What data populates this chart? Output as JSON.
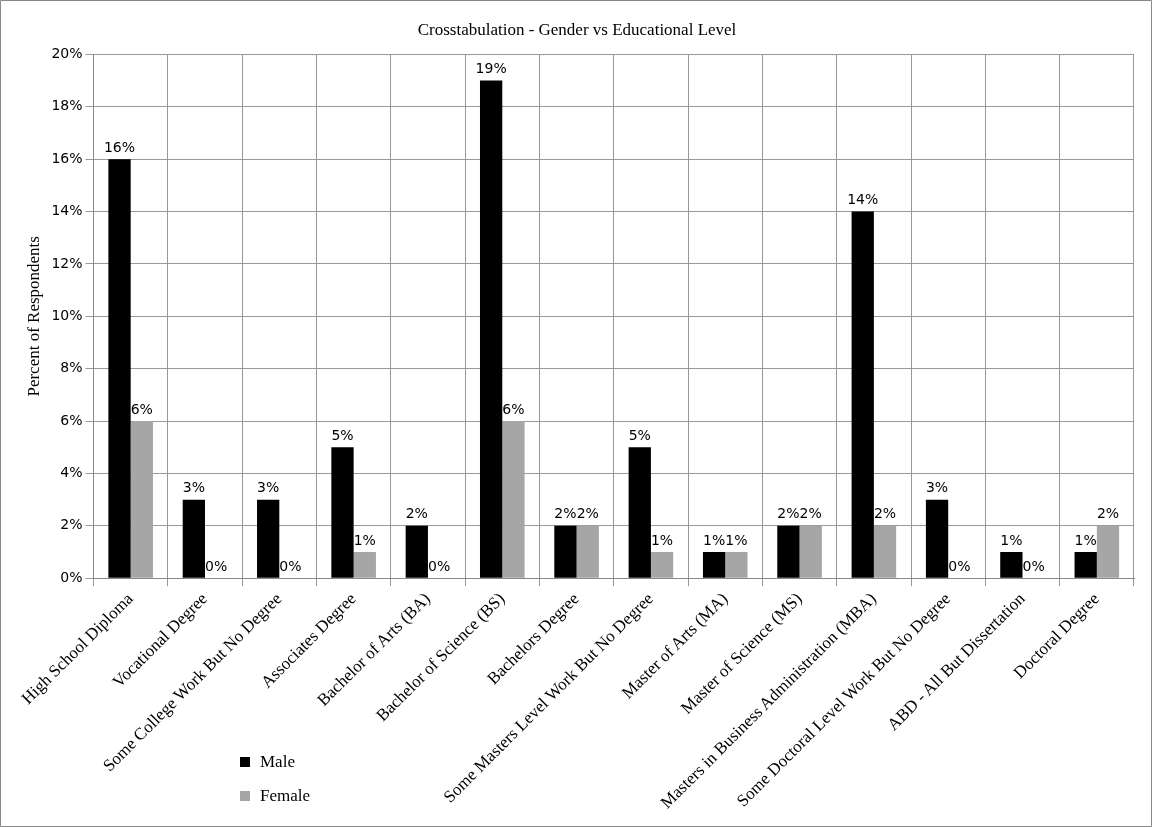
{
  "chart_data": {
    "type": "bar",
    "title": "Crosstabulation - Gender vs Educational Level",
    "ylabel": "Percent of Respondents",
    "categories": [
      "High School Diploma",
      "Vocational Degree",
      "Some College Work But No Degree",
      "Associates Degree",
      "Bachelor of Arts (BA)",
      "Bachelor of Science (BS)",
      "Bachelors Degree",
      "Some Masters Level Work But No Degree",
      "Master of Arts (MA)",
      "Master of Science (MS)",
      "Masters in Business Administration (MBA)",
      "Some Doctoral Level Work But No Degree",
      "ABD - All But Dissertation",
      "Doctoral Degree"
    ],
    "series": [
      {
        "name": "Male",
        "color": "#000000",
        "values": [
          16,
          3,
          3,
          5,
          2,
          19,
          2,
          5,
          1,
          2,
          14,
          3,
          1,
          1
        ],
        "value_labels": [
          "16%",
          "3%",
          "3%",
          "5%",
          "2%",
          "19%",
          "2%",
          "5%",
          "1%",
          "2%",
          "14%",
          "3%",
          "1%",
          "1%"
        ]
      },
      {
        "name": "Female",
        "color": "#a6a6a6",
        "values": [
          6,
          0,
          0,
          1,
          0,
          6,
          2,
          1,
          1,
          2,
          2,
          0,
          0,
          2
        ],
        "value_labels": [
          "6%",
          "0%",
          "0%",
          "1%",
          "0%",
          "6%",
          "2%",
          "1%",
          "1%",
          "2%",
          "2%",
          "0%",
          "0%",
          "2%"
        ]
      }
    ],
    "ylim": [
      0,
      20
    ],
    "yticks": [
      {
        "value": 0,
        "label": "0%"
      },
      {
        "value": 2,
        "label": "2%"
      },
      {
        "value": 4,
        "label": "4%"
      },
      {
        "value": 6,
        "label": "6%"
      },
      {
        "value": 8,
        "label": "8%"
      },
      {
        "value": 10,
        "label": "10%"
      },
      {
        "value": 12,
        "label": "12%"
      },
      {
        "value": 14,
        "label": "14%"
      },
      {
        "value": 16,
        "label": "16%"
      },
      {
        "value": 18,
        "label": "18%"
      },
      {
        "value": 20,
        "label": "20%"
      }
    ],
    "grid": true,
    "legend": "bottom left"
  }
}
